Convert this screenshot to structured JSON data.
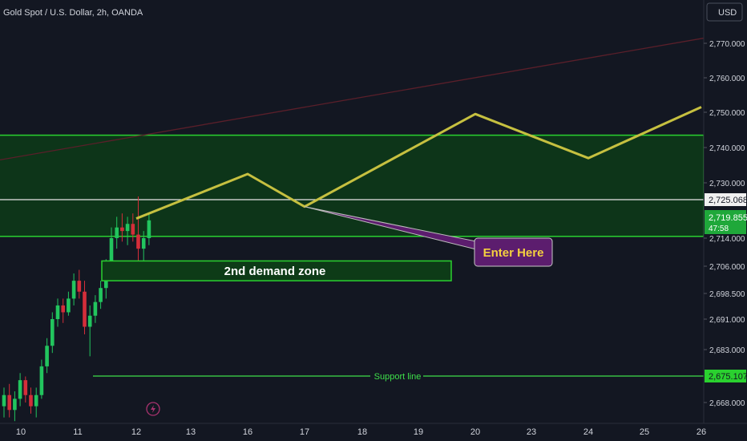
{
  "header": {
    "symbol_title": "Gold Spot / U.S. Dollar, 2h, OANDA",
    "currency_button": "USD"
  },
  "colors": {
    "background": "#131722",
    "up_candle": "#22c55e",
    "down_candle": "#d42e3a",
    "zone_fill": "#0d3b17",
    "zone_border": "#2ad12f",
    "projection": "#c6c040",
    "trend_line": "#5a1f2a",
    "callout_bg": "#5c1d6e",
    "callout_text": "#f4d03f",
    "support": "#3ee04a",
    "axis_text": "#d1d4dc"
  },
  "chart_data": {
    "type": "candlestick",
    "y_axis": {
      "ylim": [
        2666.0,
        2773.0
      ],
      "ticks": [
        2668.0,
        2675.107,
        2683.0,
        2691.0,
        2698.5,
        2706.0,
        2714.0,
        2719.855,
        2725.068,
        2730.0,
        2740.0,
        2750.0,
        2760.0,
        2770.0
      ],
      "tick_labels": [
        "2,668.000",
        "2,675.107",
        "2,683.000",
        "2,691.000",
        "2,698.500",
        "2,706.000",
        "2,714.000",
        "2,719.855",
        "2,725.068",
        "2,730.000",
        "2,740.000",
        "2,750.000",
        "2,760.000",
        "2,770.000"
      ],
      "current_price": "2,719.855",
      "countdown": "47:58",
      "white_line_price": "2,725.068",
      "support_price": "2,675.107"
    },
    "x_axis": {
      "tick_labels": [
        "10",
        "11",
        "12",
        "13",
        "16",
        "17",
        "18",
        "19",
        "20",
        "23",
        "24",
        "25",
        "26"
      ]
    },
    "candles": [
      {
        "o": 2667,
        "h": 2672,
        "l": 2664,
        "c": 2670
      },
      {
        "o": 2670,
        "h": 2673,
        "l": 2664,
        "c": 2666
      },
      {
        "o": 2666,
        "h": 2671,
        "l": 2663,
        "c": 2669
      },
      {
        "o": 2669,
        "h": 2676,
        "l": 2667,
        "c": 2674
      },
      {
        "o": 2674,
        "h": 2675,
        "l": 2668,
        "c": 2670
      },
      {
        "o": 2670,
        "h": 2672,
        "l": 2665,
        "c": 2667
      },
      {
        "o": 2667,
        "h": 2672,
        "l": 2664,
        "c": 2670
      },
      {
        "o": 2670,
        "h": 2680,
        "l": 2669,
        "c": 2678
      },
      {
        "o": 2678,
        "h": 2686,
        "l": 2676,
        "c": 2684
      },
      {
        "o": 2684,
        "h": 2693,
        "l": 2682,
        "c": 2691
      },
      {
        "o": 2691,
        "h": 2697,
        "l": 2689,
        "c": 2695
      },
      {
        "o": 2695,
        "h": 2697,
        "l": 2690,
        "c": 2693
      },
      {
        "o": 2693,
        "h": 2699,
        "l": 2692,
        "c": 2697
      },
      {
        "o": 2697,
        "h": 2704,
        "l": 2695,
        "c": 2702
      },
      {
        "o": 2702,
        "h": 2705,
        "l": 2697,
        "c": 2699
      },
      {
        "o": 2699,
        "h": 2702,
        "l": 2687,
        "c": 2689
      },
      {
        "o": 2689,
        "h": 2695,
        "l": 2681,
        "c": 2692
      },
      {
        "o": 2692,
        "h": 2698,
        "l": 2690,
        "c": 2696
      },
      {
        "o": 2696,
        "h": 2702,
        "l": 2694,
        "c": 2700
      },
      {
        "o": 2700,
        "h": 2708,
        "l": 2697,
        "c": 2705
      },
      {
        "o": 2705,
        "h": 2717,
        "l": 2703,
        "c": 2714
      },
      {
        "o": 2714,
        "h": 2720,
        "l": 2711,
        "c": 2717
      },
      {
        "o": 2717,
        "h": 2721,
        "l": 2713,
        "c": 2716
      },
      {
        "o": 2716,
        "h": 2720,
        "l": 2712,
        "c": 2718
      },
      {
        "o": 2718,
        "h": 2721,
        "l": 2713,
        "c": 2715
      },
      {
        "o": 2715,
        "h": 2726,
        "l": 2706,
        "c": 2711
      },
      {
        "o": 2711,
        "h": 2716,
        "l": 2706,
        "c": 2714
      },
      {
        "o": 2714,
        "h": 2721,
        "l": 2712,
        "c": 2719
      }
    ],
    "zones": [
      {
        "kind": "supply-demand-box",
        "from": 2714.5,
        "to": 2743.5
      },
      {
        "kind": "2nd-demand-zone",
        "from": 2702.0,
        "to": 2707.5,
        "label": "2nd demand zone"
      }
    ],
    "projection_path_prices": [
      2719.5,
      2732.5,
      2723.0,
      2749.5,
      2737.0,
      2751.5
    ],
    "projection_path_dates": [
      "12",
      "16",
      "17",
      "20",
      "24",
      "26"
    ],
    "annotations": {
      "callout": "Enter Here",
      "support_label": "Support line"
    }
  }
}
